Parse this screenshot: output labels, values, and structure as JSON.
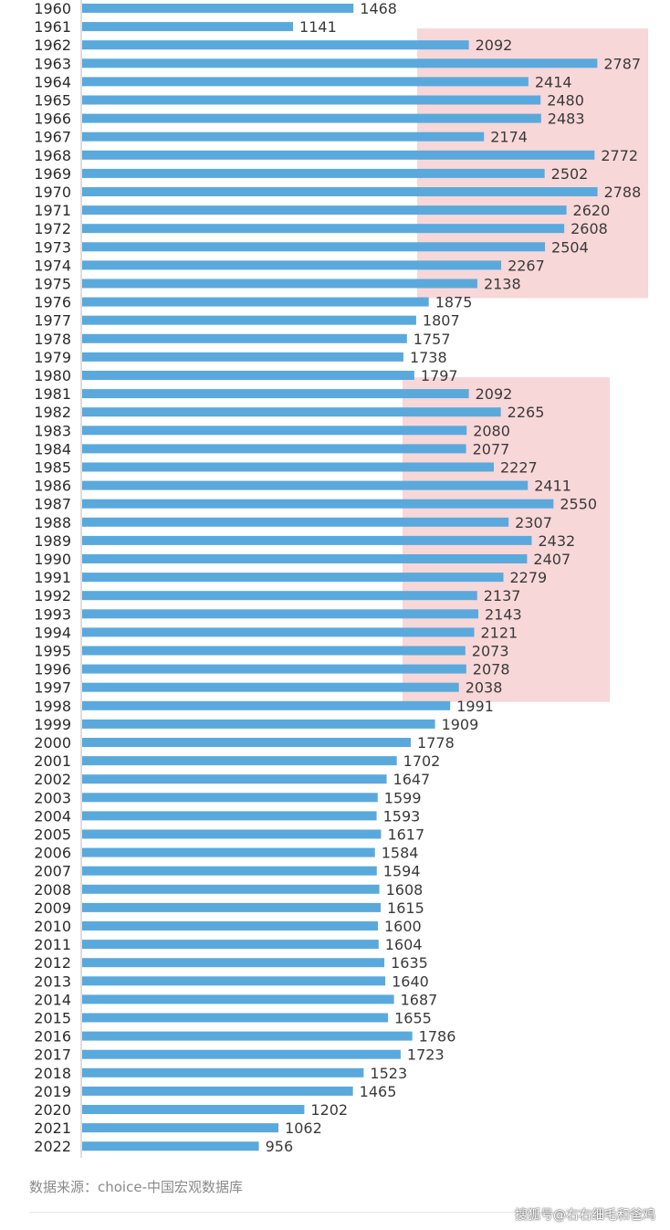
{
  "chart_data": {
    "type": "bar",
    "orientation": "horizontal",
    "categories": [
      "1960",
      "1961",
      "1962",
      "1963",
      "1964",
      "1965",
      "1966",
      "1967",
      "1968",
      "1969",
      "1970",
      "1971",
      "1972",
      "1973",
      "1974",
      "1975",
      "1976",
      "1977",
      "1978",
      "1979",
      "1980",
      "1981",
      "1982",
      "1983",
      "1984",
      "1985",
      "1986",
      "1987",
      "1988",
      "1989",
      "1990",
      "1991",
      "1992",
      "1993",
      "1994",
      "1995",
      "1996",
      "1997",
      "1998",
      "1999",
      "2000",
      "2001",
      "2002",
      "2003",
      "2004",
      "2005",
      "2006",
      "2007",
      "2008",
      "2009",
      "2010",
      "2011",
      "2012",
      "2013",
      "2014",
      "2015",
      "2016",
      "2017",
      "2018",
      "2019",
      "2020",
      "2021",
      "2022"
    ],
    "values": [
      1468,
      1141,
      2092,
      2787,
      2414,
      2480,
      2483,
      2174,
      2772,
      2502,
      2788,
      2620,
      2608,
      2504,
      2267,
      2138,
      1875,
      1807,
      1757,
      1738,
      1797,
      2092,
      2265,
      2080,
      2077,
      2227,
      2411,
      2550,
      2307,
      2432,
      2407,
      2279,
      2137,
      2143,
      2121,
      2073,
      2078,
      2038,
      1991,
      1909,
      1778,
      1702,
      1647,
      1599,
      1593,
      1617,
      1584,
      1594,
      1608,
      1615,
      1600,
      1604,
      1635,
      1640,
      1687,
      1655,
      1786,
      1723,
      1523,
      1465,
      1202,
      1062,
      956
    ],
    "highlight_ranges": [
      [
        "1962",
        "1975"
      ],
      [
        "1981",
        "1997"
      ]
    ],
    "colors": {
      "bar": "#5aa9dd",
      "highlight": "#f6c9cb",
      "axis": "#bcbcbc"
    },
    "title": "",
    "xlabel": "",
    "ylabel": "",
    "grid": false
  },
  "footer": {
    "source": "数据来源：choice-中国宏观数据库",
    "watermark": "搜狐号@右右细毛和爸鸡"
  }
}
